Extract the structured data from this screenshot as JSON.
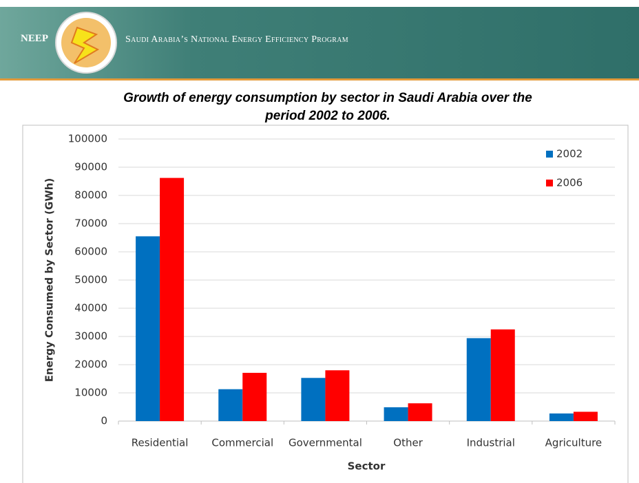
{
  "header": {
    "brand": "NEEP",
    "program": "Saudi Arabia’s National Energy Efficiency Program"
  },
  "chart_data": {
    "type": "bar",
    "title": "Growth of energy consumption by sector in Saudi Arabia over the period 2002 to 2006.",
    "x_label": "Sector",
    "y_label": "Energy Consumed by Sector (GWh)",
    "categories": [
      "Residential",
      "Commercial",
      "Governmental",
      "Other",
      "Industrial",
      "Agriculture"
    ],
    "series": [
      {
        "name": "2002",
        "color": "#0070c0",
        "values": [
          65500,
          11300,
          15300,
          4900,
          29400,
          2700
        ]
      },
      {
        "name": "2006",
        "color": "#ff0000",
        "values": [
          86200,
          17100,
          18000,
          6300,
          32500,
          3300
        ]
      }
    ],
    "ylim": [
      0,
      100000
    ],
    "yticks": [
      0,
      10000,
      20000,
      30000,
      40000,
      50000,
      60000,
      70000,
      80000,
      90000,
      100000
    ],
    "grid": true,
    "legend": "top-right"
  }
}
